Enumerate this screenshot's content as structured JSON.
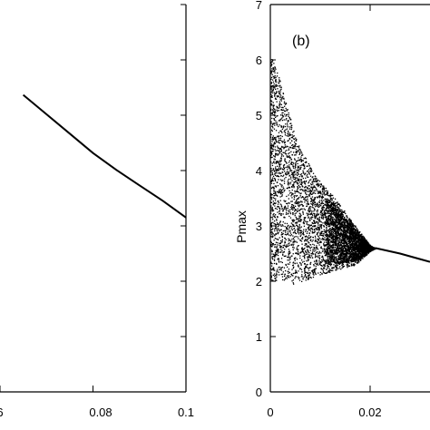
{
  "chart_data": [
    {
      "type": "line",
      "panel": "left",
      "x_ticks": [
        "6",
        "0.08",
        "0.1"
      ],
      "series": [
        {
          "x": [
            0.065,
            0.07,
            0.075,
            0.08,
            0.085,
            0.09,
            0.095,
            0.1
          ],
          "y": [
            0.23,
            0.215,
            0.2,
            0.185,
            0.172,
            0.16,
            0.148,
            0.135
          ]
        }
      ],
      "grid": false
    },
    {
      "type": "scatter",
      "panel": "right",
      "label": "(b)",
      "ylabel": "Pmax",
      "x_ticks": [
        "0",
        "0.02"
      ],
      "y_ticks": [
        "2",
        "3",
        "4",
        "5",
        "6",
        "7"
      ],
      "ylim": [
        0,
        7
      ],
      "grid": false,
      "envelope_upper": [
        [
          0,
          6.1
        ],
        [
          0.002,
          5.6
        ],
        [
          0.005,
          4.6
        ],
        [
          0.009,
          3.9
        ],
        [
          0.013,
          3.5
        ],
        [
          0.017,
          3.0
        ],
        [
          0.02,
          2.65
        ],
        [
          0.021,
          2.6
        ]
      ],
      "envelope_lower": [
        [
          0,
          2.0
        ],
        [
          0.002,
          2.0
        ],
        [
          0.005,
          1.95
        ],
        [
          0.009,
          2.1
        ],
        [
          0.013,
          2.2
        ],
        [
          0.017,
          2.3
        ],
        [
          0.02,
          2.55
        ],
        [
          0.021,
          2.6
        ]
      ],
      "tail": [
        [
          0.021,
          2.6
        ],
        [
          0.026,
          2.5
        ],
        [
          0.03,
          2.4
        ],
        [
          0.032,
          2.35
        ]
      ]
    }
  ]
}
